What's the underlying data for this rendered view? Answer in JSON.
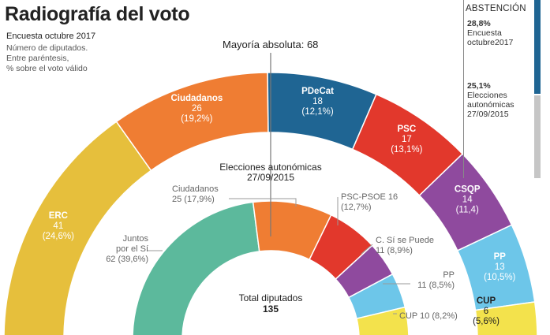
{
  "header": {
    "title": "Radiografía del voto",
    "survey": "Encuesta octubre 2017",
    "notes": [
      "Número de diputados.",
      "Entre paréntesis,",
      "% sobre el voto válido"
    ],
    "majority": "Mayoría absoluta: 68"
  },
  "abstention": {
    "title": "ABSTENCIÓN",
    "survey": {
      "pct": "28,8%",
      "lines": [
        "Encuesta",
        "octubre2017"
      ],
      "value": 28.8,
      "color": "#1f6593"
    },
    "elections": {
      "pct": "25,1%",
      "lines": [
        "Elecciones",
        "autonómicas",
        "27/09/2015"
      ],
      "value": 25.1,
      "color": "#c6c6c6"
    }
  },
  "chart_data": [
    {
      "type": "semicircle",
      "name": "Encuesta octubre 2017",
      "total": 135,
      "series": [
        {
          "name": "ERC",
          "seats": 41,
          "pct": "(24,6%)",
          "color": "#e6bf3c"
        },
        {
          "name": "Ciudadanos",
          "seats": 26,
          "pct": "(19,2%)",
          "color": "#ef7d33"
        },
        {
          "name": "PDeCat",
          "seats": 18,
          "pct": "(12,1%)",
          "color": "#1f6593"
        },
        {
          "name": "PSC",
          "seats": 17,
          "pct": "(13,1%)",
          "color": "#e2382c"
        },
        {
          "name": "CSQP",
          "seats": 14,
          "pct": "(11,4)",
          "color": "#8f4a9e"
        },
        {
          "name": "PP",
          "seats": 13,
          "pct": "(10,5%)",
          "color": "#6dc6e9"
        },
        {
          "name": "CUP",
          "seats": 6,
          "pct": "(5,6%)",
          "color": "#f3e24c"
        }
      ]
    },
    {
      "type": "semicircle",
      "name": "Elecciones autonómicas 27/09/2015",
      "title_lines": [
        "Elecciones autonómicas",
        "27/09/2015"
      ],
      "center_label": [
        "Total diputados",
        "135"
      ],
      "total": 135,
      "series": [
        {
          "name": "Juntos por el Sí",
          "label_lines": [
            "Juntos",
            "por el Sí"
          ],
          "seats": 62,
          "pct": "(39,6%)",
          "color": "#5cb99c"
        },
        {
          "name": "Ciudadanos",
          "seats": 25,
          "pct": "(17,9%)",
          "color": "#ef7d33"
        },
        {
          "name": "PSC-PSOE",
          "seats": 16,
          "pct": "(12,7%)",
          "color": "#e2382c"
        },
        {
          "name": "C. Sí se Puede",
          "seats": 11,
          "pct": "(8,9%)",
          "color": "#8f4a9e"
        },
        {
          "name": "PP",
          "seats": 11,
          "pct": "(8,5%)",
          "color": "#6dc6e9"
        },
        {
          "name": "CUP",
          "seats": 10,
          "pct": "(8,2%)",
          "color": "#f3e24c"
        }
      ]
    }
  ]
}
